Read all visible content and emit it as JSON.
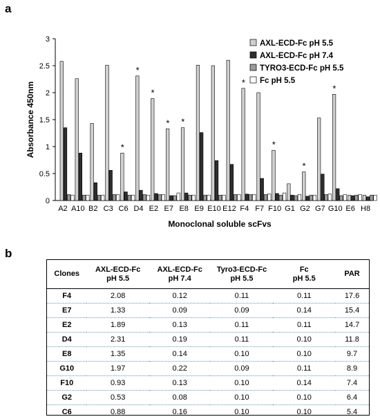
{
  "panel_a": "a",
  "panel_b": "b",
  "chart_data": {
    "type": "bar",
    "xlabel": "Monoclonal soluble scFvs",
    "ylabel": "Absorbance 450nm",
    "ylim": [
      0,
      3
    ],
    "yticks": [
      "0",
      "0.5",
      "1",
      "1.5",
      "2",
      "2.5",
      "3"
    ],
    "grid": false,
    "legend_position": "top-right",
    "categories": [
      "A2",
      "A10",
      "B2",
      "C3",
      "C6",
      "D4",
      "E2",
      "E7",
      "E8",
      "E9",
      "E10",
      "E12",
      "F4",
      "F7",
      "F10",
      "G1",
      "G2",
      "G7",
      "G10",
      "E6",
      "H8"
    ],
    "series": [
      {
        "name": "AXL-ECD-Fc pH 5.5",
        "color": "#d0d0d0",
        "values": [
          2.58,
          2.26,
          1.43,
          2.51,
          0.88,
          2.31,
          1.89,
          1.33,
          1.35,
          2.51,
          2.5,
          2.6,
          2.08,
          2.0,
          0.93,
          0.31,
          0.53,
          1.53,
          1.97,
          0.1,
          0.1
        ]
      },
      {
        "name": "AXL-ECD-Fc pH 7.4",
        "color": "#2e2e2e",
        "values": [
          1.35,
          0.88,
          0.33,
          0.56,
          0.16,
          0.19,
          0.13,
          0.09,
          0.14,
          1.26,
          0.74,
          0.67,
          0.12,
          0.41,
          0.13,
          0.1,
          0.08,
          0.49,
          0.22,
          0.09,
          0.07
        ]
      },
      {
        "name": "TYRO3-ECD-Fc pH 5.5",
        "color": "#9a9a9a",
        "values": [
          0.11,
          0.1,
          0.1,
          0.11,
          0.1,
          0.11,
          0.11,
          0.09,
          0.1,
          0.1,
          0.1,
          0.11,
          0.11,
          0.11,
          0.1,
          0.09,
          0.1,
          0.11,
          0.09,
          0.1,
          0.1
        ]
      },
      {
        "name": "Fc pH 5.5",
        "color": "#ffffff",
        "values": [
          0.1,
          0.1,
          0.1,
          0.11,
          0.1,
          0.1,
          0.11,
          0.14,
          0.1,
          0.1,
          0.1,
          0.11,
          0.11,
          0.12,
          0.14,
          0.11,
          0.1,
          0.12,
          0.11,
          0.11,
          0.1
        ]
      }
    ],
    "annotations": [
      {
        "category": "C6",
        "text": "*"
      },
      {
        "category": "D4",
        "text": "*"
      },
      {
        "category": "E2",
        "text": "*"
      },
      {
        "category": "E7",
        "text": "*"
      },
      {
        "category": "E8",
        "text": "*"
      },
      {
        "category": "F4",
        "text": "*"
      },
      {
        "category": "F10",
        "text": "*"
      },
      {
        "category": "G2",
        "text": "*"
      },
      {
        "category": "G10",
        "text": "*"
      }
    ]
  },
  "table": {
    "headers": [
      [
        "Clones"
      ],
      [
        "AXL-ECD-Fc",
        "pH 5.5"
      ],
      [
        "AXL-ECD-Fc",
        "pH 7.4"
      ],
      [
        "Tyro3-ECD-Fc",
        "pH 5.5"
      ],
      [
        "Fc",
        "pH 5.5"
      ],
      [
        "PAR"
      ]
    ],
    "rows": [
      [
        "F4",
        "2.08",
        "0.12",
        "0.11",
        "0.11",
        "17.6"
      ],
      [
        "E7",
        "1.33",
        "0.09",
        "0.09",
        "0.14",
        "15.4"
      ],
      [
        "E2",
        "1.89",
        "0.13",
        "0.11",
        "0.11",
        "14.7"
      ],
      [
        "D4",
        "2.31",
        "0.19",
        "0.11",
        "0.10",
        "11.8"
      ],
      [
        "E8",
        "1.35",
        "0.14",
        "0.10",
        "0.10",
        "9.7"
      ],
      [
        "G10",
        "1.97",
        "0.22",
        "0.09",
        "0.11",
        "8.9"
      ],
      [
        "F10",
        "0.93",
        "0.13",
        "0.10",
        "0.14",
        "7.4"
      ],
      [
        "G2",
        "0.53",
        "0.08",
        "0.10",
        "0.10",
        "6.4"
      ],
      [
        "C6",
        "0.88",
        "0.16",
        "0.10",
        "0.10",
        "5.4"
      ]
    ]
  }
}
